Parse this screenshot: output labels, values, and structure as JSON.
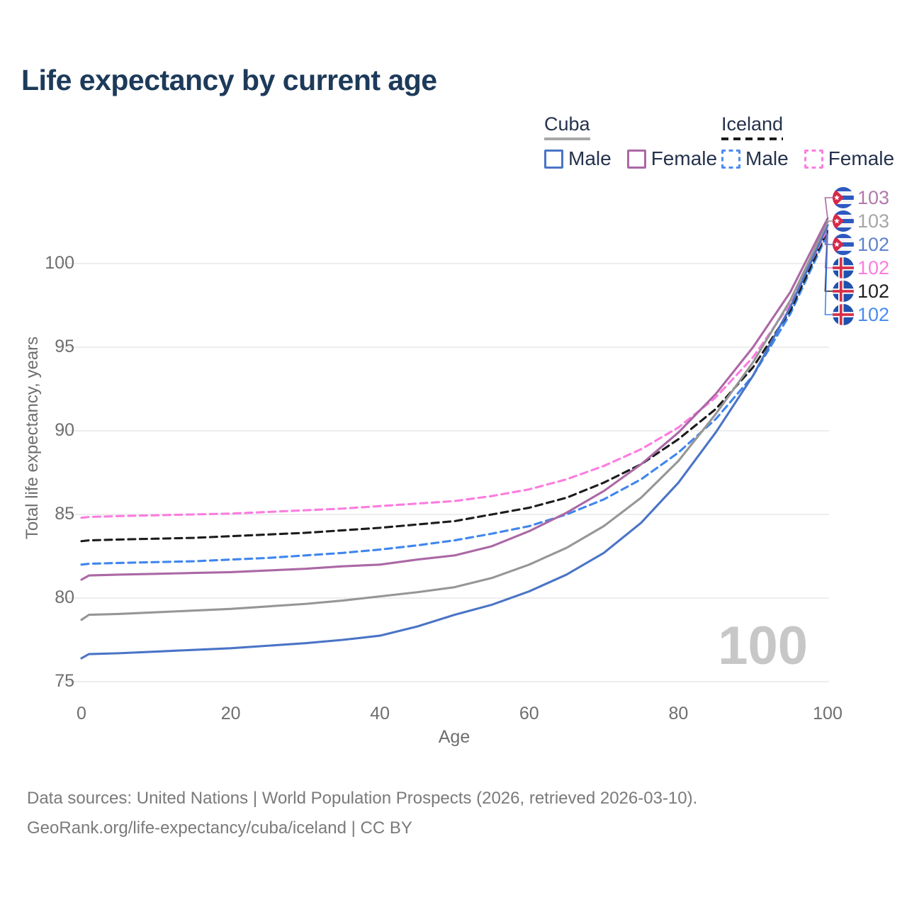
{
  "title": "Life expectancy by current age",
  "watermark": "100",
  "footer": {
    "line1": "Data sources: United Nations | World Population Prospects (2026, retrieved 2026-03-10).",
    "line2": "GeoRank.org/life-expectancy/cuba/iceland | CC BY"
  },
  "axes": {
    "x_label": "Age",
    "y_label": "Total life expectancy, years",
    "x_ticks": [
      0,
      20,
      40,
      60,
      80,
      100
    ],
    "y_ticks": [
      75,
      80,
      85,
      90,
      95,
      100
    ]
  },
  "legend": {
    "groups": [
      {
        "label": "Cuba",
        "line_style": "solid",
        "underline_color": "#a8a8a8",
        "items": [
          {
            "label": "Male",
            "color": "#4a74c6",
            "dashed": false
          },
          {
            "label": "Female",
            "color": "#ab68a5",
            "dashed": false
          }
        ]
      },
      {
        "label": "Iceland",
        "line_style": "dashed",
        "underline_color": "#1c1c1c",
        "items": [
          {
            "label": "Male",
            "color": "#4b8bf5",
            "dashed": true
          },
          {
            "label": "Female",
            "color": "#fb7ce0",
            "dashed": true
          }
        ]
      }
    ]
  },
  "chart_data": {
    "type": "line",
    "title": "Life expectancy by current age",
    "xlabel": "Age",
    "ylabel": "Total life expectancy, years",
    "xlim": [
      0,
      100
    ],
    "ylim": [
      75,
      103.5
    ],
    "grid": "horizontal-only",
    "x": [
      0,
      1,
      5,
      10,
      15,
      20,
      25,
      30,
      35,
      40,
      45,
      50,
      55,
      60,
      65,
      70,
      75,
      80,
      85,
      90,
      95,
      100
    ],
    "series": [
      {
        "name": "Cuba — Female",
        "country": "Cuba",
        "sex": "Female",
        "color": "#ab68a5",
        "dashed": false,
        "flag": "cuba",
        "end_label": "103",
        "end_label_color": "#b279ac",
        "values": [
          81.1,
          81.35,
          81.4,
          81.45,
          81.5,
          81.55,
          81.65,
          81.75,
          81.9,
          82.0,
          82.3,
          82.55,
          83.1,
          84.0,
          85.1,
          86.4,
          88.0,
          89.9,
          92.2,
          95.0,
          98.3,
          102.7
        ]
      },
      {
        "name": "Cuba — Both sexes",
        "country": "Cuba",
        "sex": "Both sexes",
        "color": "#969696",
        "dashed": false,
        "flag": "cuba",
        "end_label": "103",
        "end_label_color": "#a6a6a6",
        "values": [
          78.7,
          79.0,
          79.05,
          79.15,
          79.25,
          79.35,
          79.5,
          79.65,
          79.85,
          80.1,
          80.35,
          80.65,
          81.2,
          82.0,
          83.0,
          84.3,
          86.0,
          88.2,
          91.0,
          94.1,
          97.8,
          102.5
        ]
      },
      {
        "name": "Cuba — Male",
        "country": "Cuba",
        "sex": "Male",
        "color": "#4a74c6",
        "dashed": false,
        "flag": "cuba",
        "end_label": "102",
        "end_label_color": "#5d83c9",
        "values": [
          76.4,
          76.65,
          76.7,
          76.8,
          76.9,
          77.0,
          77.15,
          77.3,
          77.5,
          77.75,
          78.3,
          79.0,
          79.6,
          80.4,
          81.4,
          82.7,
          84.5,
          86.9,
          89.9,
          93.3,
          97.4,
          102.3
        ]
      },
      {
        "name": "Iceland — Female",
        "country": "Iceland",
        "sex": "Female",
        "color": "#fb7ce0",
        "dashed": true,
        "flag": "iceland",
        "end_label": "102",
        "end_label_color": "#fb7ce0",
        "values": [
          84.8,
          84.85,
          84.9,
          84.95,
          85.0,
          85.05,
          85.15,
          85.25,
          85.35,
          85.5,
          85.65,
          85.8,
          86.1,
          86.5,
          87.1,
          87.9,
          88.9,
          90.2,
          92.0,
          94.4,
          97.6,
          102.1
        ]
      },
      {
        "name": "Iceland — Both sexes",
        "country": "Iceland",
        "sex": "Both sexes",
        "color": "#1c1c1c",
        "dashed": true,
        "flag": "iceland",
        "end_label": "102",
        "end_label_color": "#1f1f1f",
        "values": [
          83.4,
          83.45,
          83.5,
          83.55,
          83.6,
          83.7,
          83.8,
          83.9,
          84.05,
          84.2,
          84.4,
          84.6,
          85.0,
          85.4,
          86.0,
          86.9,
          88.0,
          89.5,
          91.3,
          93.8,
          97.2,
          102.0
        ]
      },
      {
        "name": "Iceland — Male",
        "country": "Iceland",
        "sex": "Male",
        "color": "#3f86ee",
        "dashed": true,
        "flag": "iceland",
        "end_label": "102",
        "end_label_color": "#4a8bf0",
        "values": [
          82.0,
          82.05,
          82.1,
          82.15,
          82.2,
          82.3,
          82.4,
          82.55,
          82.7,
          82.9,
          83.15,
          83.45,
          83.85,
          84.3,
          85.0,
          85.9,
          87.1,
          88.7,
          90.7,
          93.3,
          97.0,
          101.8
        ]
      }
    ]
  }
}
